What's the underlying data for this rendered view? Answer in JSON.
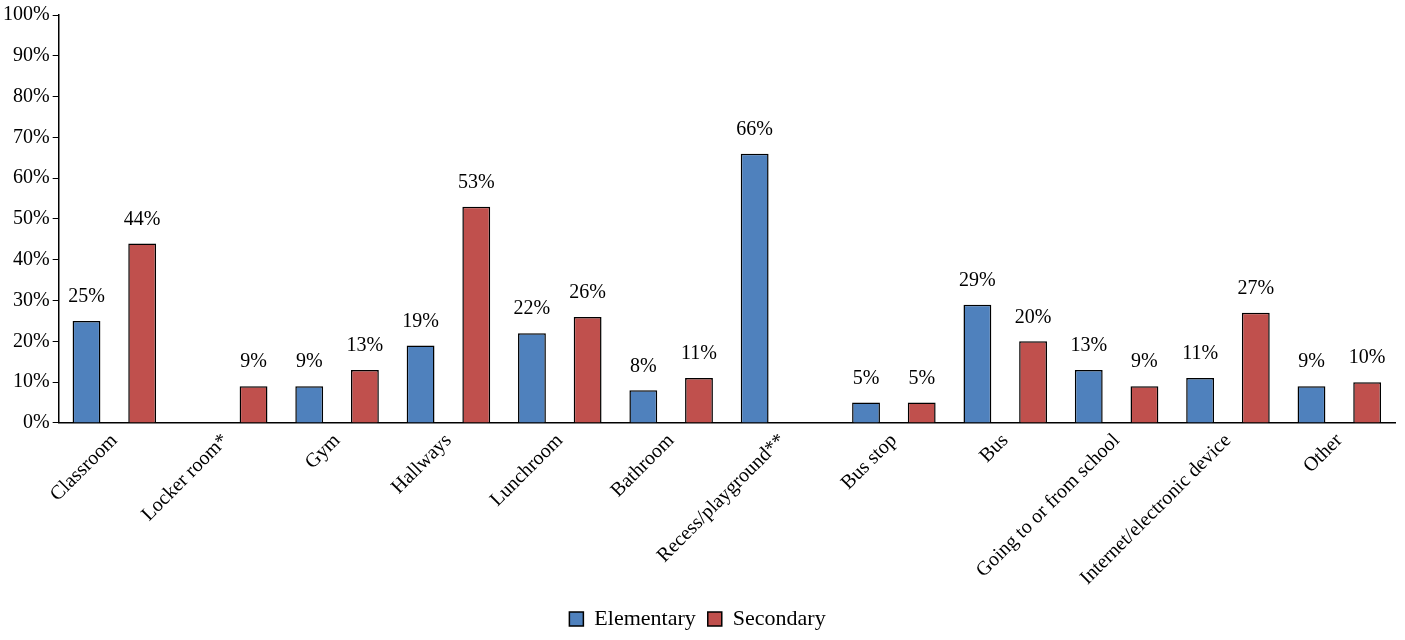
{
  "chart_data": {
    "type": "bar",
    "categories": [
      "Classroom",
      "Locker room*",
      "Gym",
      "Hallways",
      "Lunchroom",
      "Bathroom",
      "Recess/playground**",
      "Bus stop",
      "Bus",
      "Going to or from school",
      "Internet/electronic device",
      "Other"
    ],
    "series": [
      {
        "name": "Elementary",
        "color": "#4f81bd",
        "values": [
          25,
          null,
          9,
          19,
          22,
          8,
          66,
          5,
          29,
          13,
          11,
          9
        ],
        "value_labels": [
          "25%",
          null,
          "9%",
          "19%",
          "22%",
          "8%",
          "66%",
          "5%",
          "29%",
          "13%",
          "11%",
          "9%"
        ]
      },
      {
        "name": "Secondary",
        "color": "#c0504d",
        "values": [
          44,
          9,
          13,
          53,
          26,
          11,
          null,
          5,
          20,
          9,
          27,
          10
        ],
        "value_labels": [
          "44%",
          "9%",
          "13%",
          "53%",
          "26%",
          "11%",
          null,
          "5%",
          "20%",
          "9%",
          "27%",
          "10%"
        ]
      }
    ],
    "ylim": [
      0,
      100
    ],
    "yticks": [
      {
        "value": 0,
        "label": "0%"
      },
      {
        "value": 10,
        "label": "10%"
      },
      {
        "value": 20,
        "label": "20%"
      },
      {
        "value": 30,
        "label": "30%"
      },
      {
        "value": 40,
        "label": "40%"
      },
      {
        "value": 50,
        "label": "50%"
      },
      {
        "value": 60,
        "label": "60%"
      },
      {
        "value": 70,
        "label": "70%"
      },
      {
        "value": 80,
        "label": "80%"
      },
      {
        "value": 90,
        "label": "90%"
      },
      {
        "value": 100,
        "label": "100%"
      }
    ],
    "grid": false,
    "legend": "bottom"
  }
}
